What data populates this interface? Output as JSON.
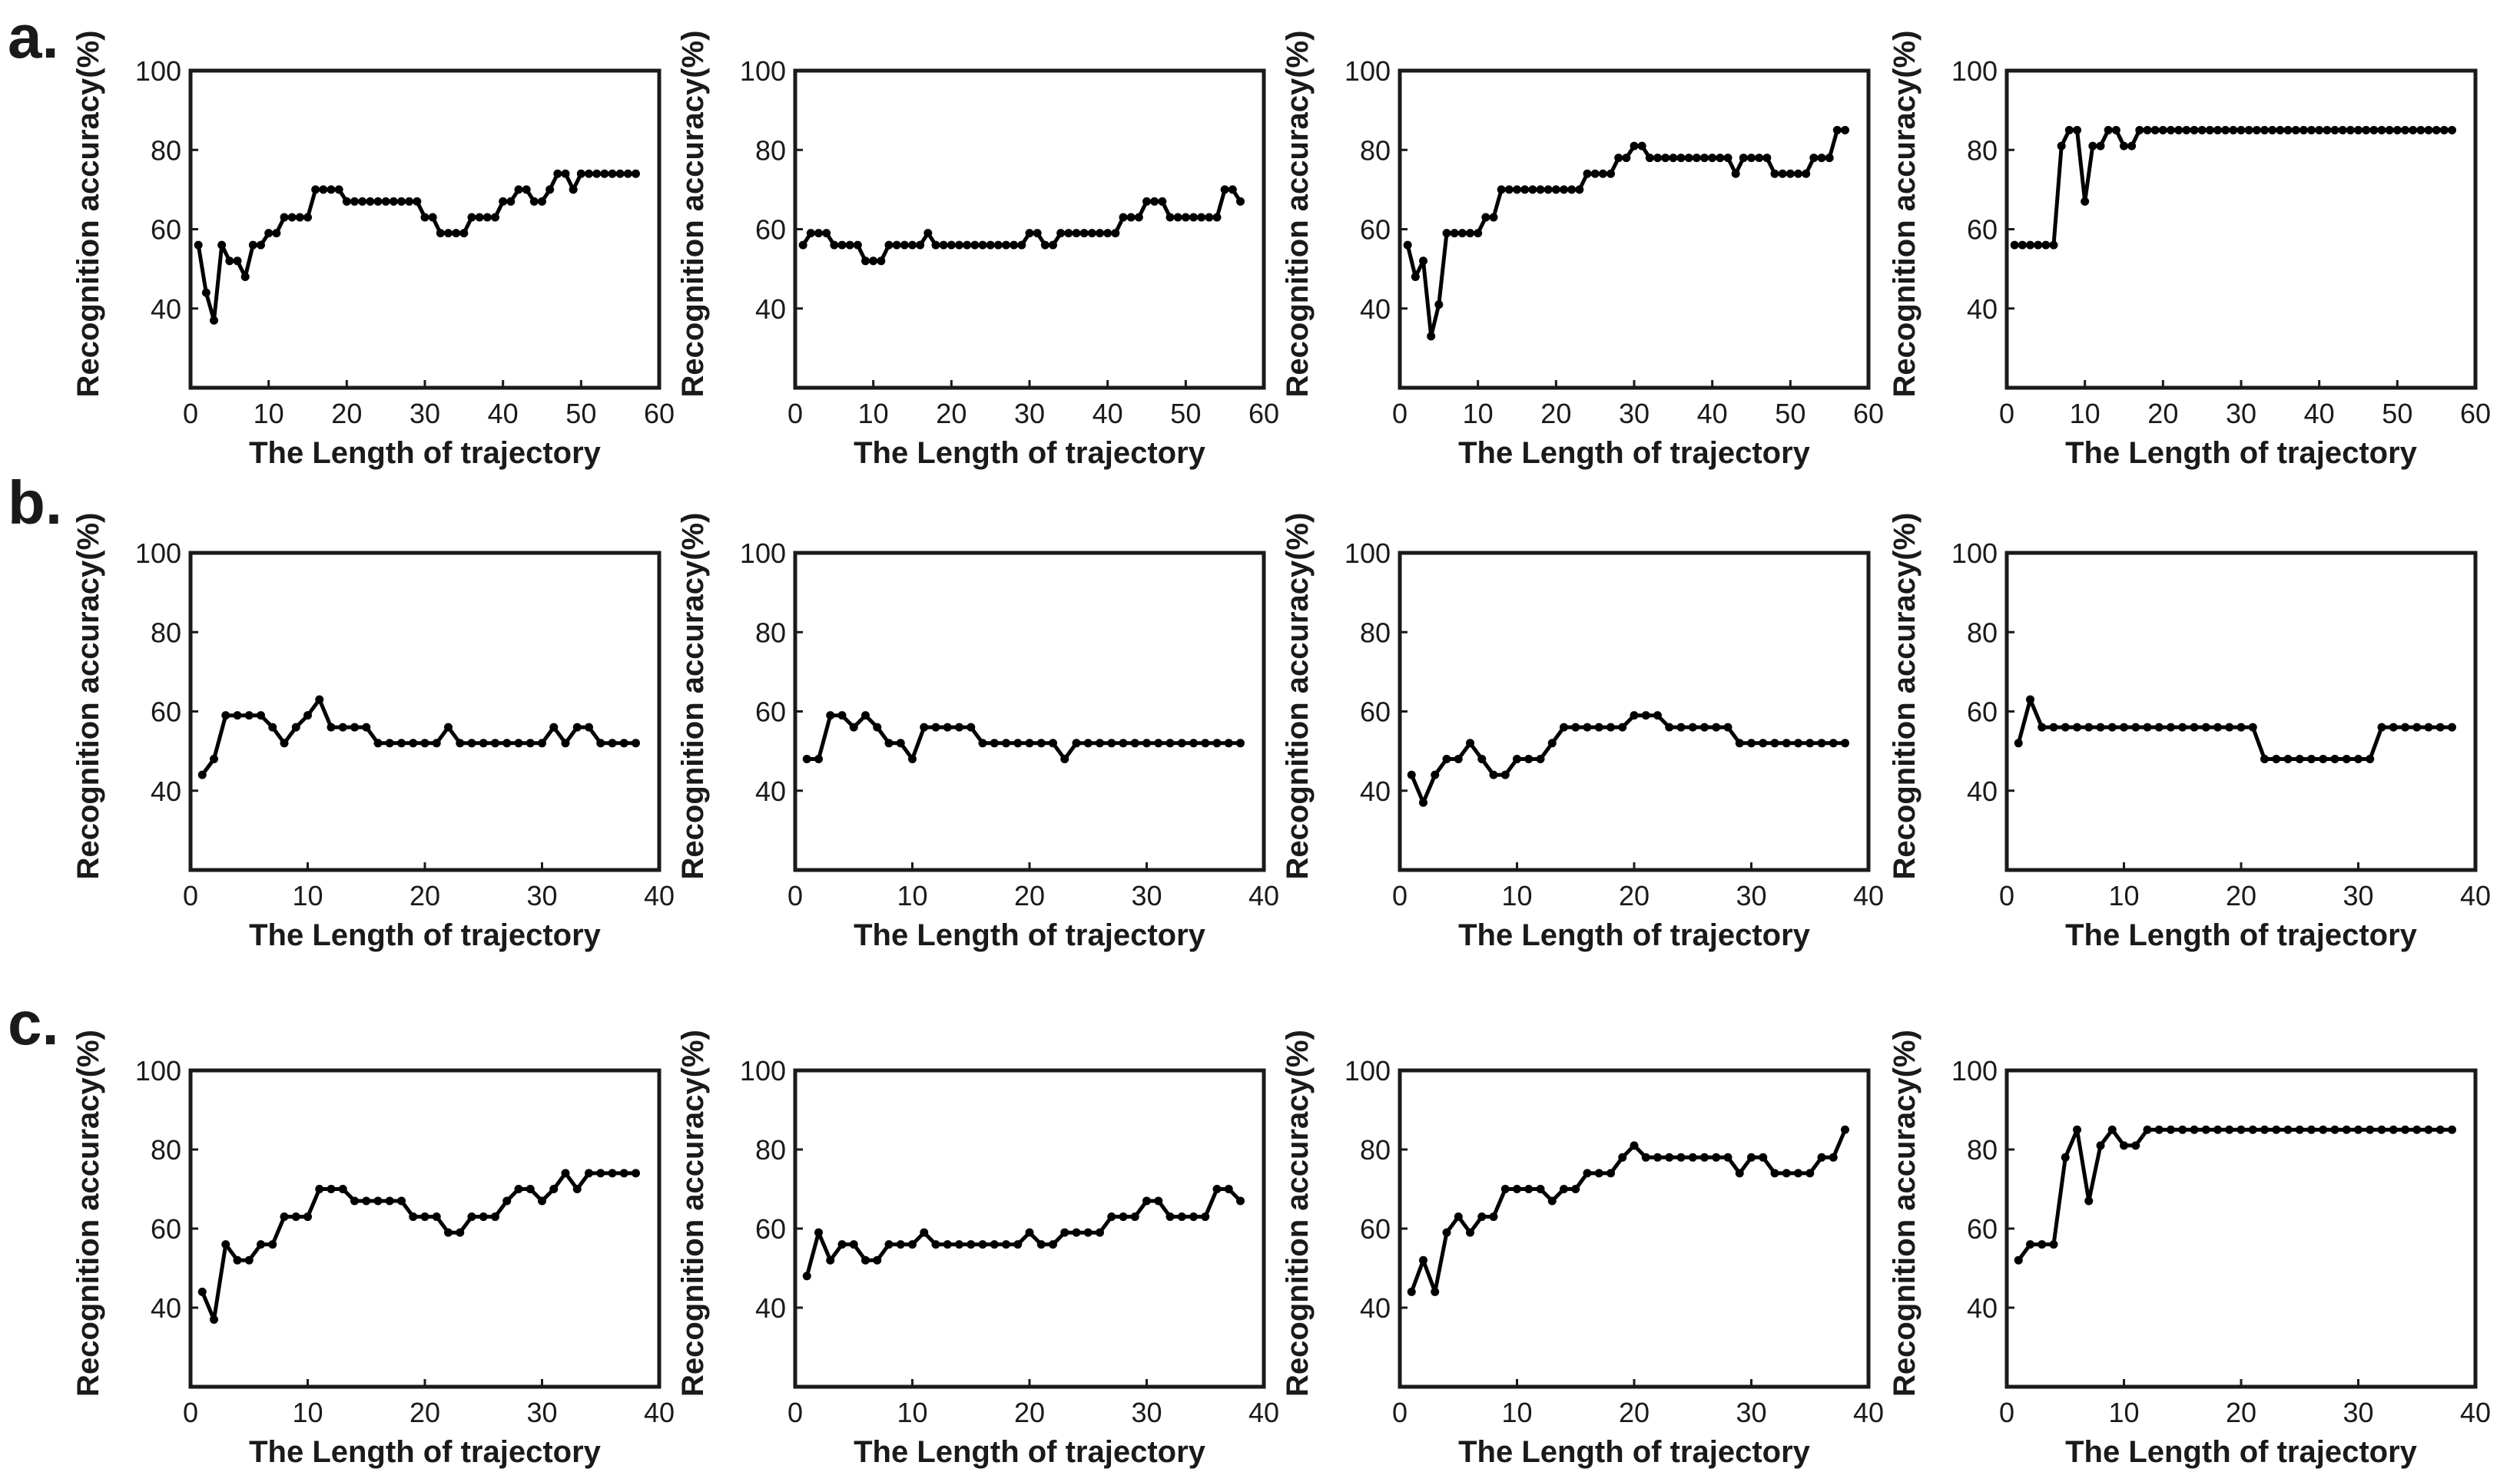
{
  "figure": {
    "rows": [
      {
        "label": "a."
      },
      {
        "label": "b."
      },
      {
        "label": "c."
      }
    ]
  },
  "chart_data": [
    {
      "type": "line",
      "row": "a.",
      "panel": 1,
      "xlabel": "The Length of trajectory",
      "ylabel": "Recognition accuracy(%)",
      "xlim": [
        0,
        60
      ],
      "ylim": [
        20,
        100
      ],
      "xticks": [
        0,
        10,
        20,
        30,
        40,
        50,
        60
      ],
      "yticks": [
        40,
        60,
        80,
        100
      ],
      "x": [
        1,
        2,
        3,
        4,
        5,
        6,
        7,
        8,
        9,
        10,
        11,
        12,
        13,
        14,
        15,
        16,
        17,
        18,
        19,
        20,
        21,
        22,
        23,
        24,
        25,
        26,
        27,
        28,
        29,
        30,
        31,
        32,
        33,
        34,
        35,
        36,
        37,
        38,
        39,
        40,
        41,
        42,
        43,
        44,
        45,
        46,
        47,
        48,
        49,
        50,
        51,
        52,
        53,
        54,
        55,
        56,
        57
      ],
      "y": [
        56,
        44,
        37,
        56,
        52,
        52,
        48,
        56,
        56,
        59,
        59,
        63,
        63,
        63,
        63,
        70,
        70,
        70,
        70,
        67,
        67,
        67,
        67,
        67,
        67,
        67,
        67,
        67,
        67,
        63,
        63,
        59,
        59,
        59,
        59,
        63,
        63,
        63,
        63,
        67,
        67,
        70,
        70,
        67,
        67,
        70,
        74,
        74,
        70,
        74,
        74,
        74,
        74,
        74,
        74,
        74,
        74
      ]
    },
    {
      "type": "line",
      "row": "a.",
      "panel": 2,
      "xlabel": "The Length of trajectory",
      "ylabel": "Recognition accuracy(%)",
      "xlim": [
        0,
        60
      ],
      "ylim": [
        20,
        100
      ],
      "xticks": [
        0,
        10,
        20,
        30,
        40,
        50,
        60
      ],
      "yticks": [
        40,
        60,
        80,
        100
      ],
      "x": [
        1,
        2,
        3,
        4,
        5,
        6,
        7,
        8,
        9,
        10,
        11,
        12,
        13,
        14,
        15,
        16,
        17,
        18,
        19,
        20,
        21,
        22,
        23,
        24,
        25,
        26,
        27,
        28,
        29,
        30,
        31,
        32,
        33,
        34,
        35,
        36,
        37,
        38,
        39,
        40,
        41,
        42,
        43,
        44,
        45,
        46,
        47,
        48,
        49,
        50,
        51,
        52,
        53,
        54,
        55,
        56,
        57
      ],
      "y": [
        56,
        59,
        59,
        59,
        56,
        56,
        56,
        56,
        52,
        52,
        52,
        56,
        56,
        56,
        56,
        56,
        59,
        56,
        56,
        56,
        56,
        56,
        56,
        56,
        56,
        56,
        56,
        56,
        56,
        59,
        59,
        56,
        56,
        59,
        59,
        59,
        59,
        59,
        59,
        59,
        59,
        63,
        63,
        63,
        67,
        67,
        67,
        63,
        63,
        63,
        63,
        63,
        63,
        63,
        70,
        70,
        67
      ]
    },
    {
      "type": "line",
      "row": "a.",
      "panel": 3,
      "xlabel": "The Length of trajectory",
      "ylabel": "Recognition accuracy(%)",
      "xlim": [
        0,
        60
      ],
      "ylim": [
        20,
        100
      ],
      "xticks": [
        0,
        10,
        20,
        30,
        40,
        50,
        60
      ],
      "yticks": [
        40,
        60,
        80,
        100
      ],
      "x": [
        1,
        2,
        3,
        4,
        5,
        6,
        7,
        8,
        9,
        10,
        11,
        12,
        13,
        14,
        15,
        16,
        17,
        18,
        19,
        20,
        21,
        22,
        23,
        24,
        25,
        26,
        27,
        28,
        29,
        30,
        31,
        32,
        33,
        34,
        35,
        36,
        37,
        38,
        39,
        40,
        41,
        42,
        43,
        44,
        45,
        46,
        47,
        48,
        49,
        50,
        51,
        52,
        53,
        54,
        55,
        56,
        57
      ],
      "y": [
        56,
        48,
        52,
        33,
        41,
        59,
        59,
        59,
        59,
        59,
        63,
        63,
        70,
        70,
        70,
        70,
        70,
        70,
        70,
        70,
        70,
        70,
        70,
        74,
        74,
        74,
        74,
        78,
        78,
        81,
        81,
        78,
        78,
        78,
        78,
        78,
        78,
        78,
        78,
        78,
        78,
        78,
        74,
        78,
        78,
        78,
        78,
        74,
        74,
        74,
        74,
        74,
        78,
        78,
        78,
        85,
        85
      ]
    },
    {
      "type": "line",
      "row": "a.",
      "panel": 4,
      "xlabel": "The Length of trajectory",
      "ylabel": "Recognition accuracy(%)",
      "xlim": [
        0,
        60
      ],
      "ylim": [
        20,
        100
      ],
      "xticks": [
        0,
        10,
        20,
        30,
        40,
        50,
        60
      ],
      "yticks": [
        40,
        60,
        80,
        100
      ],
      "x": [
        1,
        2,
        3,
        4,
        5,
        6,
        7,
        8,
        9,
        10,
        11,
        12,
        13,
        14,
        15,
        16,
        17,
        18,
        19,
        20,
        21,
        22,
        23,
        24,
        25,
        26,
        27,
        28,
        29,
        30,
        31,
        32,
        33,
        34,
        35,
        36,
        37,
        38,
        39,
        40,
        41,
        42,
        43,
        44,
        45,
        46,
        47,
        48,
        49,
        50,
        51,
        52,
        53,
        54,
        55,
        56,
        57
      ],
      "y": [
        56,
        56,
        56,
        56,
        56,
        56,
        81,
        85,
        85,
        67,
        81,
        81,
        85,
        85,
        81,
        81,
        85,
        85,
        85,
        85,
        85,
        85,
        85,
        85,
        85,
        85,
        85,
        85,
        85,
        85,
        85,
        85,
        85,
        85,
        85,
        85,
        85,
        85,
        85,
        85,
        85,
        85,
        85,
        85,
        85,
        85,
        85,
        85,
        85,
        85,
        85,
        85,
        85,
        85,
        85,
        85,
        85
      ]
    },
    {
      "type": "line",
      "row": "b.",
      "panel": 1,
      "xlabel": "The Length of trajectory",
      "ylabel": "Recognition accuracy(%)",
      "xlim": [
        0,
        40
      ],
      "ylim": [
        20,
        100
      ],
      "xticks": [
        0,
        10,
        20,
        30,
        40
      ],
      "yticks": [
        40,
        60,
        80,
        100
      ],
      "x": [
        1,
        2,
        3,
        4,
        5,
        6,
        7,
        8,
        9,
        10,
        11,
        12,
        13,
        14,
        15,
        16,
        17,
        18,
        19,
        20,
        21,
        22,
        23,
        24,
        25,
        26,
        27,
        28,
        29,
        30,
        31,
        32,
        33,
        34,
        35,
        36,
        37,
        38
      ],
      "y": [
        44,
        48,
        59,
        59,
        59,
        59,
        56,
        52,
        56,
        59,
        63,
        56,
        56,
        56,
        56,
        52,
        52,
        52,
        52,
        52,
        52,
        56,
        52,
        52,
        52,
        52,
        52,
        52,
        52,
        52,
        56,
        52,
        56,
        56,
        52,
        52,
        52,
        52
      ]
    },
    {
      "type": "line",
      "row": "b.",
      "panel": 2,
      "xlabel": "The Length of trajectory",
      "ylabel": "Recognition accuracy(%)",
      "xlim": [
        0,
        40
      ],
      "ylim": [
        20,
        100
      ],
      "xticks": [
        0,
        10,
        20,
        30,
        40
      ],
      "yticks": [
        40,
        60,
        80,
        100
      ],
      "x": [
        1,
        2,
        3,
        4,
        5,
        6,
        7,
        8,
        9,
        10,
        11,
        12,
        13,
        14,
        15,
        16,
        17,
        18,
        19,
        20,
        21,
        22,
        23,
        24,
        25,
        26,
        27,
        28,
        29,
        30,
        31,
        32,
        33,
        34,
        35,
        36,
        37,
        38
      ],
      "y": [
        48,
        48,
        59,
        59,
        56,
        59,
        56,
        52,
        52,
        48,
        56,
        56,
        56,
        56,
        56,
        52,
        52,
        52,
        52,
        52,
        52,
        52,
        48,
        52,
        52,
        52,
        52,
        52,
        52,
        52,
        52,
        52,
        52,
        52,
        52,
        52,
        52,
        52
      ]
    },
    {
      "type": "line",
      "row": "b.",
      "panel": 3,
      "xlabel": "The Length of trajectory",
      "ylabel": "Recognition accuracy(%)",
      "xlim": [
        0,
        40
      ],
      "ylim": [
        20,
        100
      ],
      "xticks": [
        0,
        10,
        20,
        30,
        40
      ],
      "yticks": [
        40,
        60,
        80,
        100
      ],
      "x": [
        1,
        2,
        3,
        4,
        5,
        6,
        7,
        8,
        9,
        10,
        11,
        12,
        13,
        14,
        15,
        16,
        17,
        18,
        19,
        20,
        21,
        22,
        23,
        24,
        25,
        26,
        27,
        28,
        29,
        30,
        31,
        32,
        33,
        34,
        35,
        36,
        37,
        38
      ],
      "y": [
        44,
        37,
        44,
        48,
        48,
        52,
        48,
        44,
        44,
        48,
        48,
        48,
        52,
        56,
        56,
        56,
        56,
        56,
        56,
        59,
        59,
        59,
        56,
        56,
        56,
        56,
        56,
        56,
        52,
        52,
        52,
        52,
        52,
        52,
        52,
        52,
        52,
        52
      ]
    },
    {
      "type": "line",
      "row": "b.",
      "panel": 4,
      "xlabel": "The Length of trajectory",
      "ylabel": "Recognition accuracy(%)",
      "xlim": [
        0,
        40
      ],
      "ylim": [
        20,
        100
      ],
      "xticks": [
        0,
        10,
        20,
        30,
        40
      ],
      "yticks": [
        40,
        60,
        80,
        100
      ],
      "x": [
        1,
        2,
        3,
        4,
        5,
        6,
        7,
        8,
        9,
        10,
        11,
        12,
        13,
        14,
        15,
        16,
        17,
        18,
        19,
        20,
        21,
        22,
        23,
        24,
        25,
        26,
        27,
        28,
        29,
        30,
        31,
        32,
        33,
        34,
        35,
        36,
        37,
        38
      ],
      "y": [
        52,
        63,
        56,
        56,
        56,
        56,
        56,
        56,
        56,
        56,
        56,
        56,
        56,
        56,
        56,
        56,
        56,
        56,
        56,
        56,
        56,
        48,
        48,
        48,
        48,
        48,
        48,
        48,
        48,
        48,
        48,
        56,
        56,
        56,
        56,
        56,
        56,
        56
      ]
    },
    {
      "type": "line",
      "row": "c.",
      "panel": 1,
      "xlabel": "The Length of trajectory",
      "ylabel": "Recognition accuracy(%)",
      "xlim": [
        0,
        40
      ],
      "ylim": [
        20,
        100
      ],
      "xticks": [
        0,
        10,
        20,
        30,
        40
      ],
      "yticks": [
        40,
        60,
        80,
        100
      ],
      "x": [
        1,
        2,
        3,
        4,
        5,
        6,
        7,
        8,
        9,
        10,
        11,
        12,
        13,
        14,
        15,
        16,
        17,
        18,
        19,
        20,
        21,
        22,
        23,
        24,
        25,
        26,
        27,
        28,
        29,
        30,
        31,
        32,
        33,
        34,
        35,
        36,
        37,
        38
      ],
      "y": [
        44,
        37,
        56,
        52,
        52,
        56,
        56,
        63,
        63,
        63,
        70,
        70,
        70,
        67,
        67,
        67,
        67,
        67,
        63,
        63,
        63,
        59,
        59,
        63,
        63,
        63,
        67,
        70,
        70,
        67,
        70,
        74,
        70,
        74,
        74,
        74,
        74,
        74
      ]
    },
    {
      "type": "line",
      "row": "c.",
      "panel": 2,
      "xlabel": "The Length of trajectory",
      "ylabel": "Recognition accuracy(%)",
      "xlim": [
        0,
        40
      ],
      "ylim": [
        20,
        100
      ],
      "xticks": [
        0,
        10,
        20,
        30,
        40
      ],
      "yticks": [
        40,
        60,
        80,
        100
      ],
      "x": [
        1,
        2,
        3,
        4,
        5,
        6,
        7,
        8,
        9,
        10,
        11,
        12,
        13,
        14,
        15,
        16,
        17,
        18,
        19,
        20,
        21,
        22,
        23,
        24,
        25,
        26,
        27,
        28,
        29,
        30,
        31,
        32,
        33,
        34,
        35,
        36,
        37,
        38
      ],
      "y": [
        48,
        59,
        52,
        56,
        56,
        52,
        52,
        56,
        56,
        56,
        59,
        56,
        56,
        56,
        56,
        56,
        56,
        56,
        56,
        59,
        56,
        56,
        59,
        59,
        59,
        59,
        63,
        63,
        63,
        67,
        67,
        63,
        63,
        63,
        63,
        70,
        70,
        67
      ]
    },
    {
      "type": "line",
      "row": "c.",
      "panel": 3,
      "xlabel": "The Length of trajectory",
      "ylabel": "Recognition accuracy(%)",
      "xlim": [
        0,
        40
      ],
      "ylim": [
        20,
        100
      ],
      "xticks": [
        0,
        10,
        20,
        30,
        40
      ],
      "yticks": [
        40,
        60,
        80,
        100
      ],
      "x": [
        1,
        2,
        3,
        4,
        5,
        6,
        7,
        8,
        9,
        10,
        11,
        12,
        13,
        14,
        15,
        16,
        17,
        18,
        19,
        20,
        21,
        22,
        23,
        24,
        25,
        26,
        27,
        28,
        29,
        30,
        31,
        32,
        33,
        34,
        35,
        36,
        37,
        38
      ],
      "y": [
        44,
        52,
        44,
        59,
        63,
        59,
        63,
        63,
        70,
        70,
        70,
        70,
        67,
        70,
        70,
        74,
        74,
        74,
        78,
        81,
        78,
        78,
        78,
        78,
        78,
        78,
        78,
        78,
        74,
        78,
        78,
        74,
        74,
        74,
        74,
        78,
        78,
        85
      ]
    },
    {
      "type": "line",
      "row": "c.",
      "panel": 4,
      "xlabel": "The Length of trajectory",
      "ylabel": "Recognition accuracy(%)",
      "xlim": [
        0,
        40
      ],
      "ylim": [
        20,
        100
      ],
      "xticks": [
        0,
        10,
        20,
        30,
        40
      ],
      "yticks": [
        40,
        60,
        80,
        100
      ],
      "x": [
        1,
        2,
        3,
        4,
        5,
        6,
        7,
        8,
        9,
        10,
        11,
        12,
        13,
        14,
        15,
        16,
        17,
        18,
        19,
        20,
        21,
        22,
        23,
        24,
        25,
        26,
        27,
        28,
        29,
        30,
        31,
        32,
        33,
        34,
        35,
        36,
        37,
        38
      ],
      "y": [
        52,
        56,
        56,
        56,
        78,
        85,
        67,
        81,
        85,
        81,
        81,
        85,
        85,
        85,
        85,
        85,
        85,
        85,
        85,
        85,
        85,
        85,
        85,
        85,
        85,
        85,
        85,
        85,
        85,
        85,
        85,
        85,
        85,
        85,
        85,
        85,
        85,
        85
      ]
    }
  ]
}
